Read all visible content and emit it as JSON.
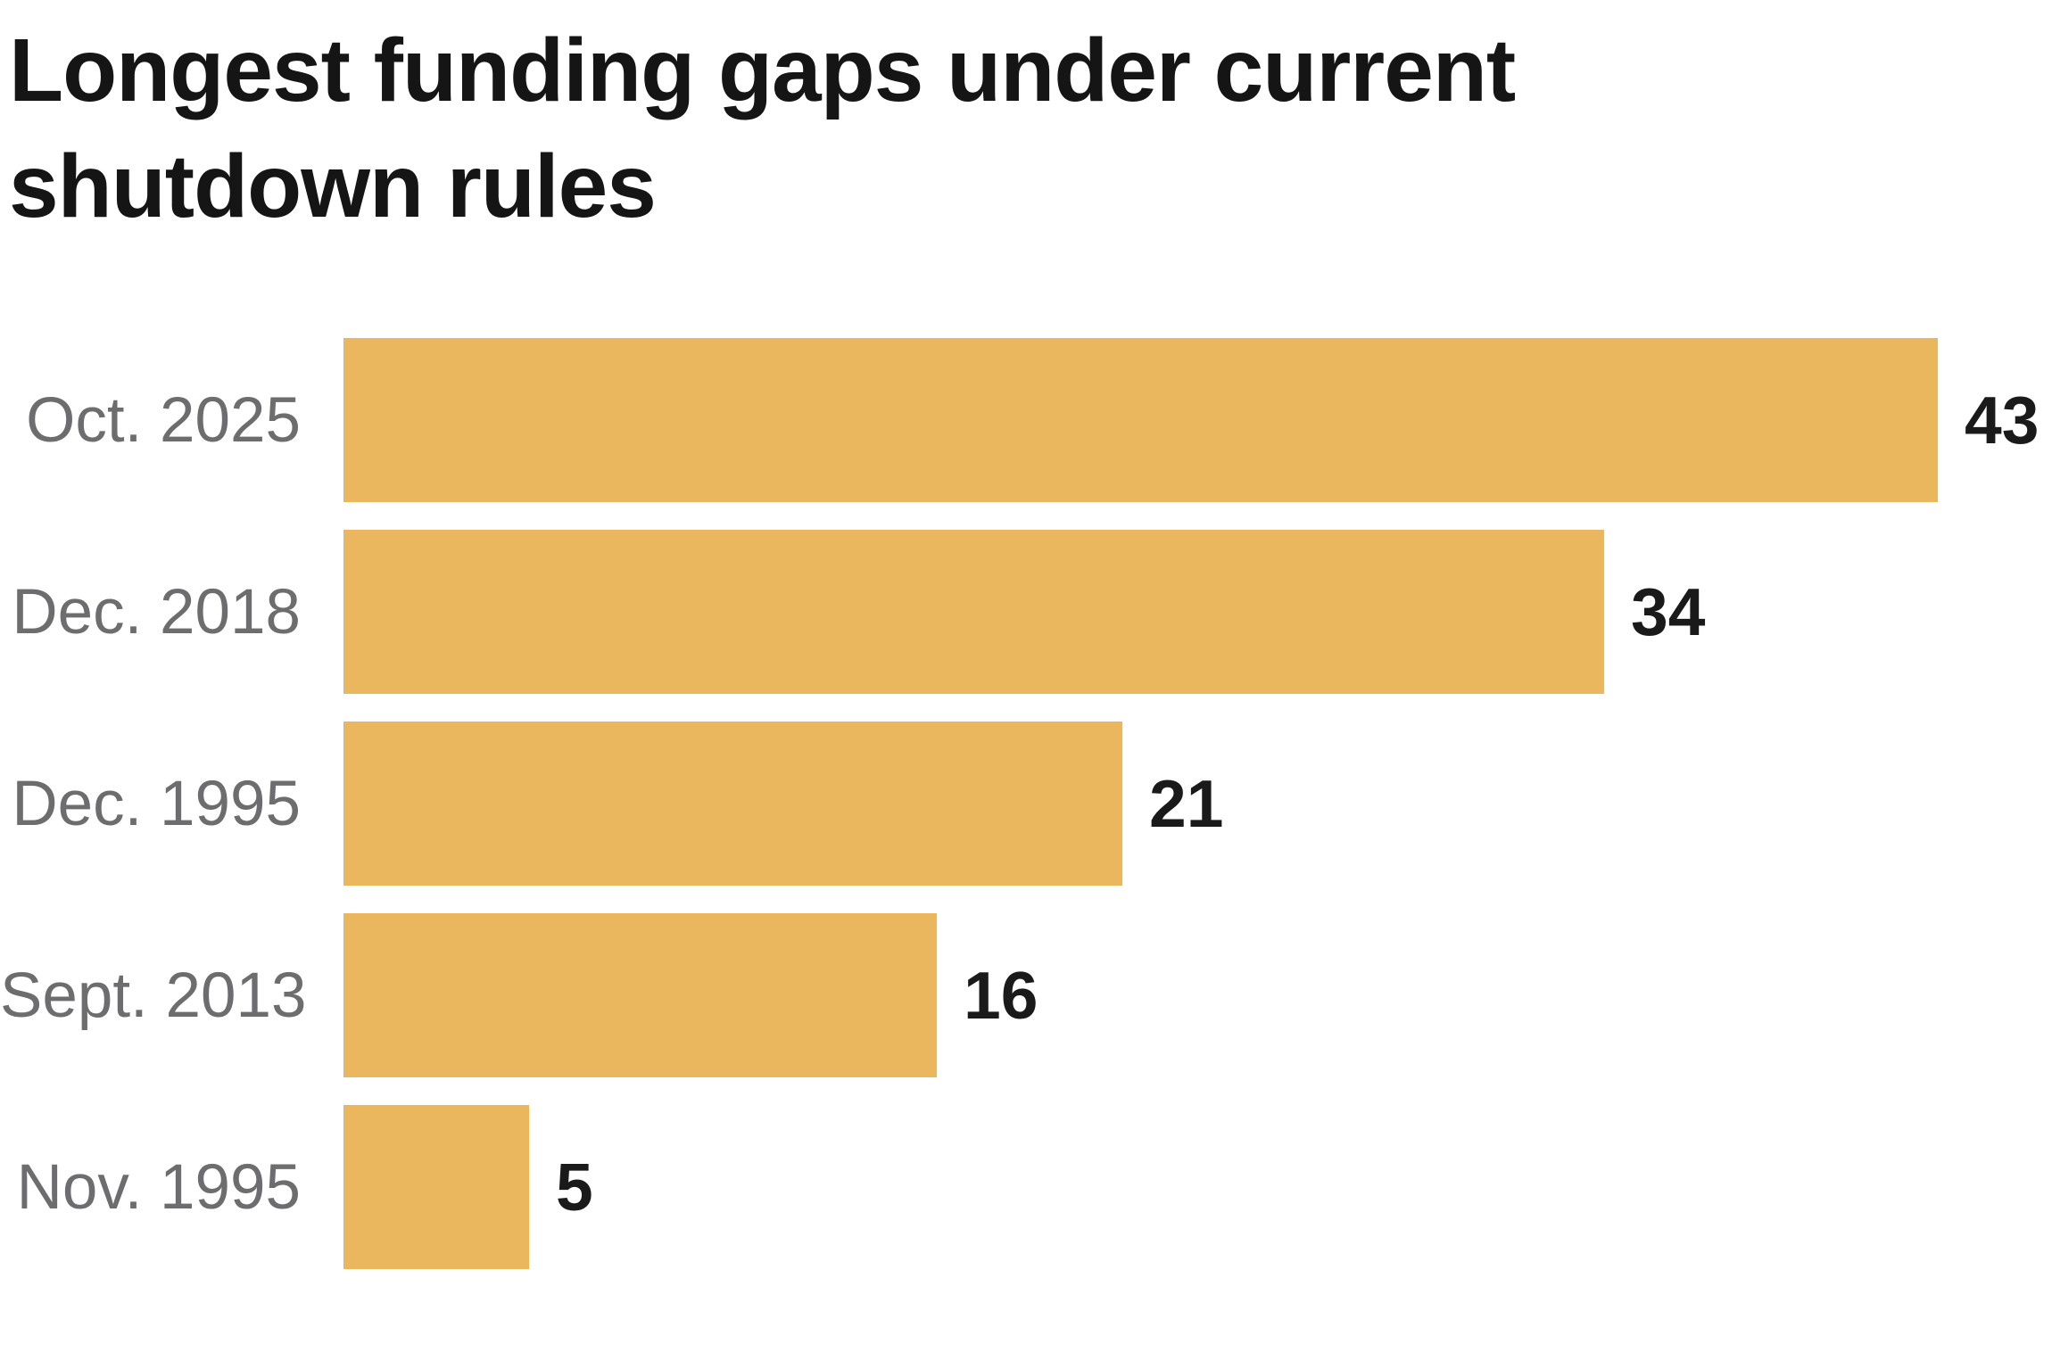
{
  "chart_data": {
    "type": "bar",
    "orientation": "horizontal",
    "title": "Longest funding gaps under current shutdown rules",
    "title_lines": [
      "Longest funding gaps under current",
      "shutdown rules"
    ],
    "categories": [
      "Oct. 2025",
      "Dec. 2018",
      "Dec. 1995",
      "Sept. 2013",
      "Nov. 1995"
    ],
    "values": [
      43,
      34,
      21,
      16,
      5
    ],
    "xlim": [
      0,
      43
    ],
    "grid": false,
    "legend": false,
    "value_labels_position": "right-of-bar",
    "category_labels_position": "left-of-bar",
    "colors": {
      "bar": "#eab75f",
      "category_label": "#6d6d6f",
      "value_label": "#1a1a1a",
      "title": "#151515",
      "background": "#ffffff"
    }
  }
}
